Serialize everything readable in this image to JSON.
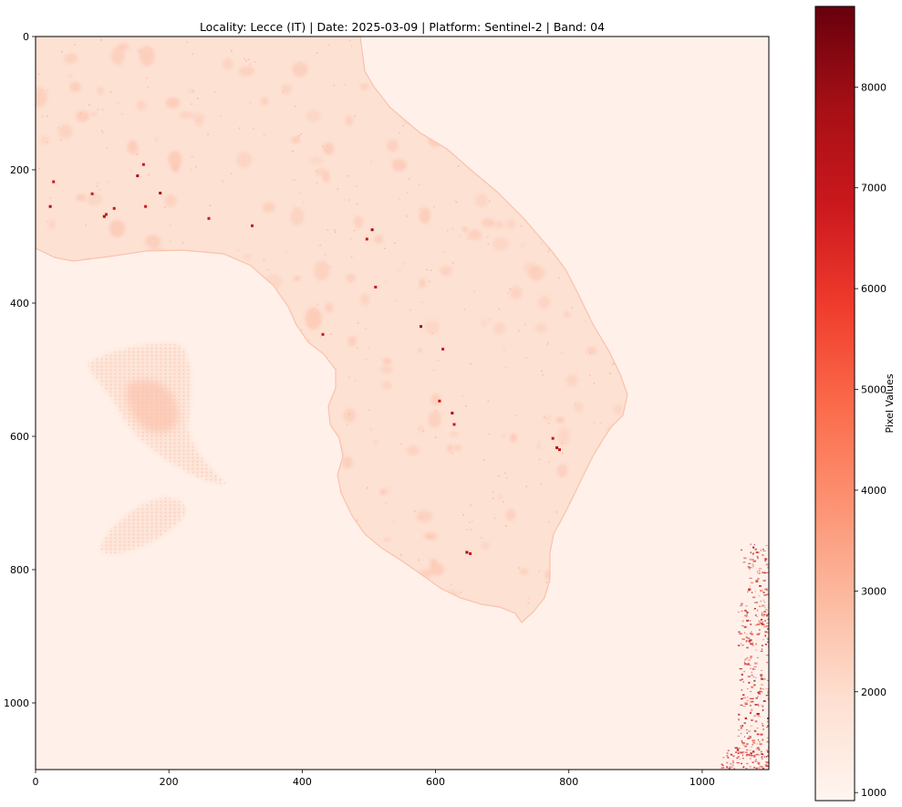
{
  "chart_data": {
    "type": "heatmap",
    "title": "Locality: Lecce (IT)  |  Date: 2025-03-09  |  Platform: Sentinel-2  |  Band: 04",
    "xlabel": "",
    "ylabel": "",
    "xlim": [
      0,
      1100
    ],
    "ylim": [
      1100,
      0
    ],
    "x_ticks": [
      "0",
      "200",
      "400",
      "600",
      "800",
      "1000"
    ],
    "y_ticks": [
      "0",
      "200",
      "400",
      "600",
      "800",
      "1000"
    ],
    "colormap": "Reds",
    "colormap_stops": [
      "#fff5f0",
      "#fee0d2",
      "#fcbba1",
      "#fc9272",
      "#fb6a4a",
      "#ef3b2c",
      "#cb181d",
      "#a50f15",
      "#67000d"
    ],
    "colorbar": {
      "label": "Pixel Values",
      "range": [
        920,
        8800
      ],
      "ticks": [
        "1000",
        "2000",
        "3000",
        "4000",
        "5000",
        "6000",
        "7000",
        "8000"
      ]
    },
    "grid": false,
    "colors": {
      "sea": "#fff1ea",
      "land": "#fde1d3",
      "land_patch": "#fcc7b2",
      "bright_pixel": "#cb181d",
      "hot_pixel": "#a50f15"
    }
  }
}
